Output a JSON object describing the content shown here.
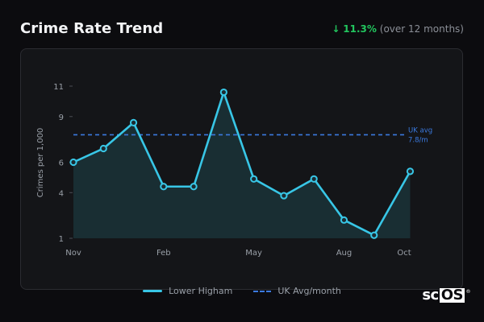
{
  "header": {
    "title": "Crime Rate Trend",
    "change_arrow": "↓",
    "change_pct": "11.3%",
    "change_note": "(over 12 months)"
  },
  "colors": {
    "line": "#38c6e6",
    "area": "#1a3338",
    "reference": "#3b7ae0",
    "positive": "#22c55e"
  },
  "chart_data": {
    "type": "line",
    "ylabel": "Crimes per 1,000",
    "xlabel": "",
    "ylim": [
      1,
      11
    ],
    "y_ticks": [
      1,
      4,
      6,
      9,
      11
    ],
    "x_tick_labels": [
      {
        "index": 0,
        "label": "Nov"
      },
      {
        "index": 3,
        "label": "Feb"
      },
      {
        "index": 6,
        "label": "May"
      },
      {
        "index": 9,
        "label": "Aug"
      },
      {
        "index": 11,
        "label": "Oct"
      }
    ],
    "x": [
      0,
      1,
      2,
      3,
      4,
      5,
      6,
      7,
      8,
      9,
      10,
      11.2
    ],
    "series": [
      {
        "name": "Lower Higham",
        "values": [
          6.0,
          6.9,
          8.6,
          4.4,
          4.4,
          10.6,
          4.9,
          3.8,
          4.9,
          2.2,
          1.2,
          5.4
        ]
      }
    ],
    "reference_line": {
      "name": "UK Avg/month",
      "value": 7.8,
      "label_line1": "UK avg",
      "label_line2": "7.8/m"
    },
    "grid": false,
    "legend_position": "bottom-center"
  },
  "legend": {
    "series_label": "Lower Higham",
    "reference_label": "UK Avg/month"
  },
  "brand": {
    "text_a": "sc",
    "text_b": "OS",
    "reg": "®"
  }
}
